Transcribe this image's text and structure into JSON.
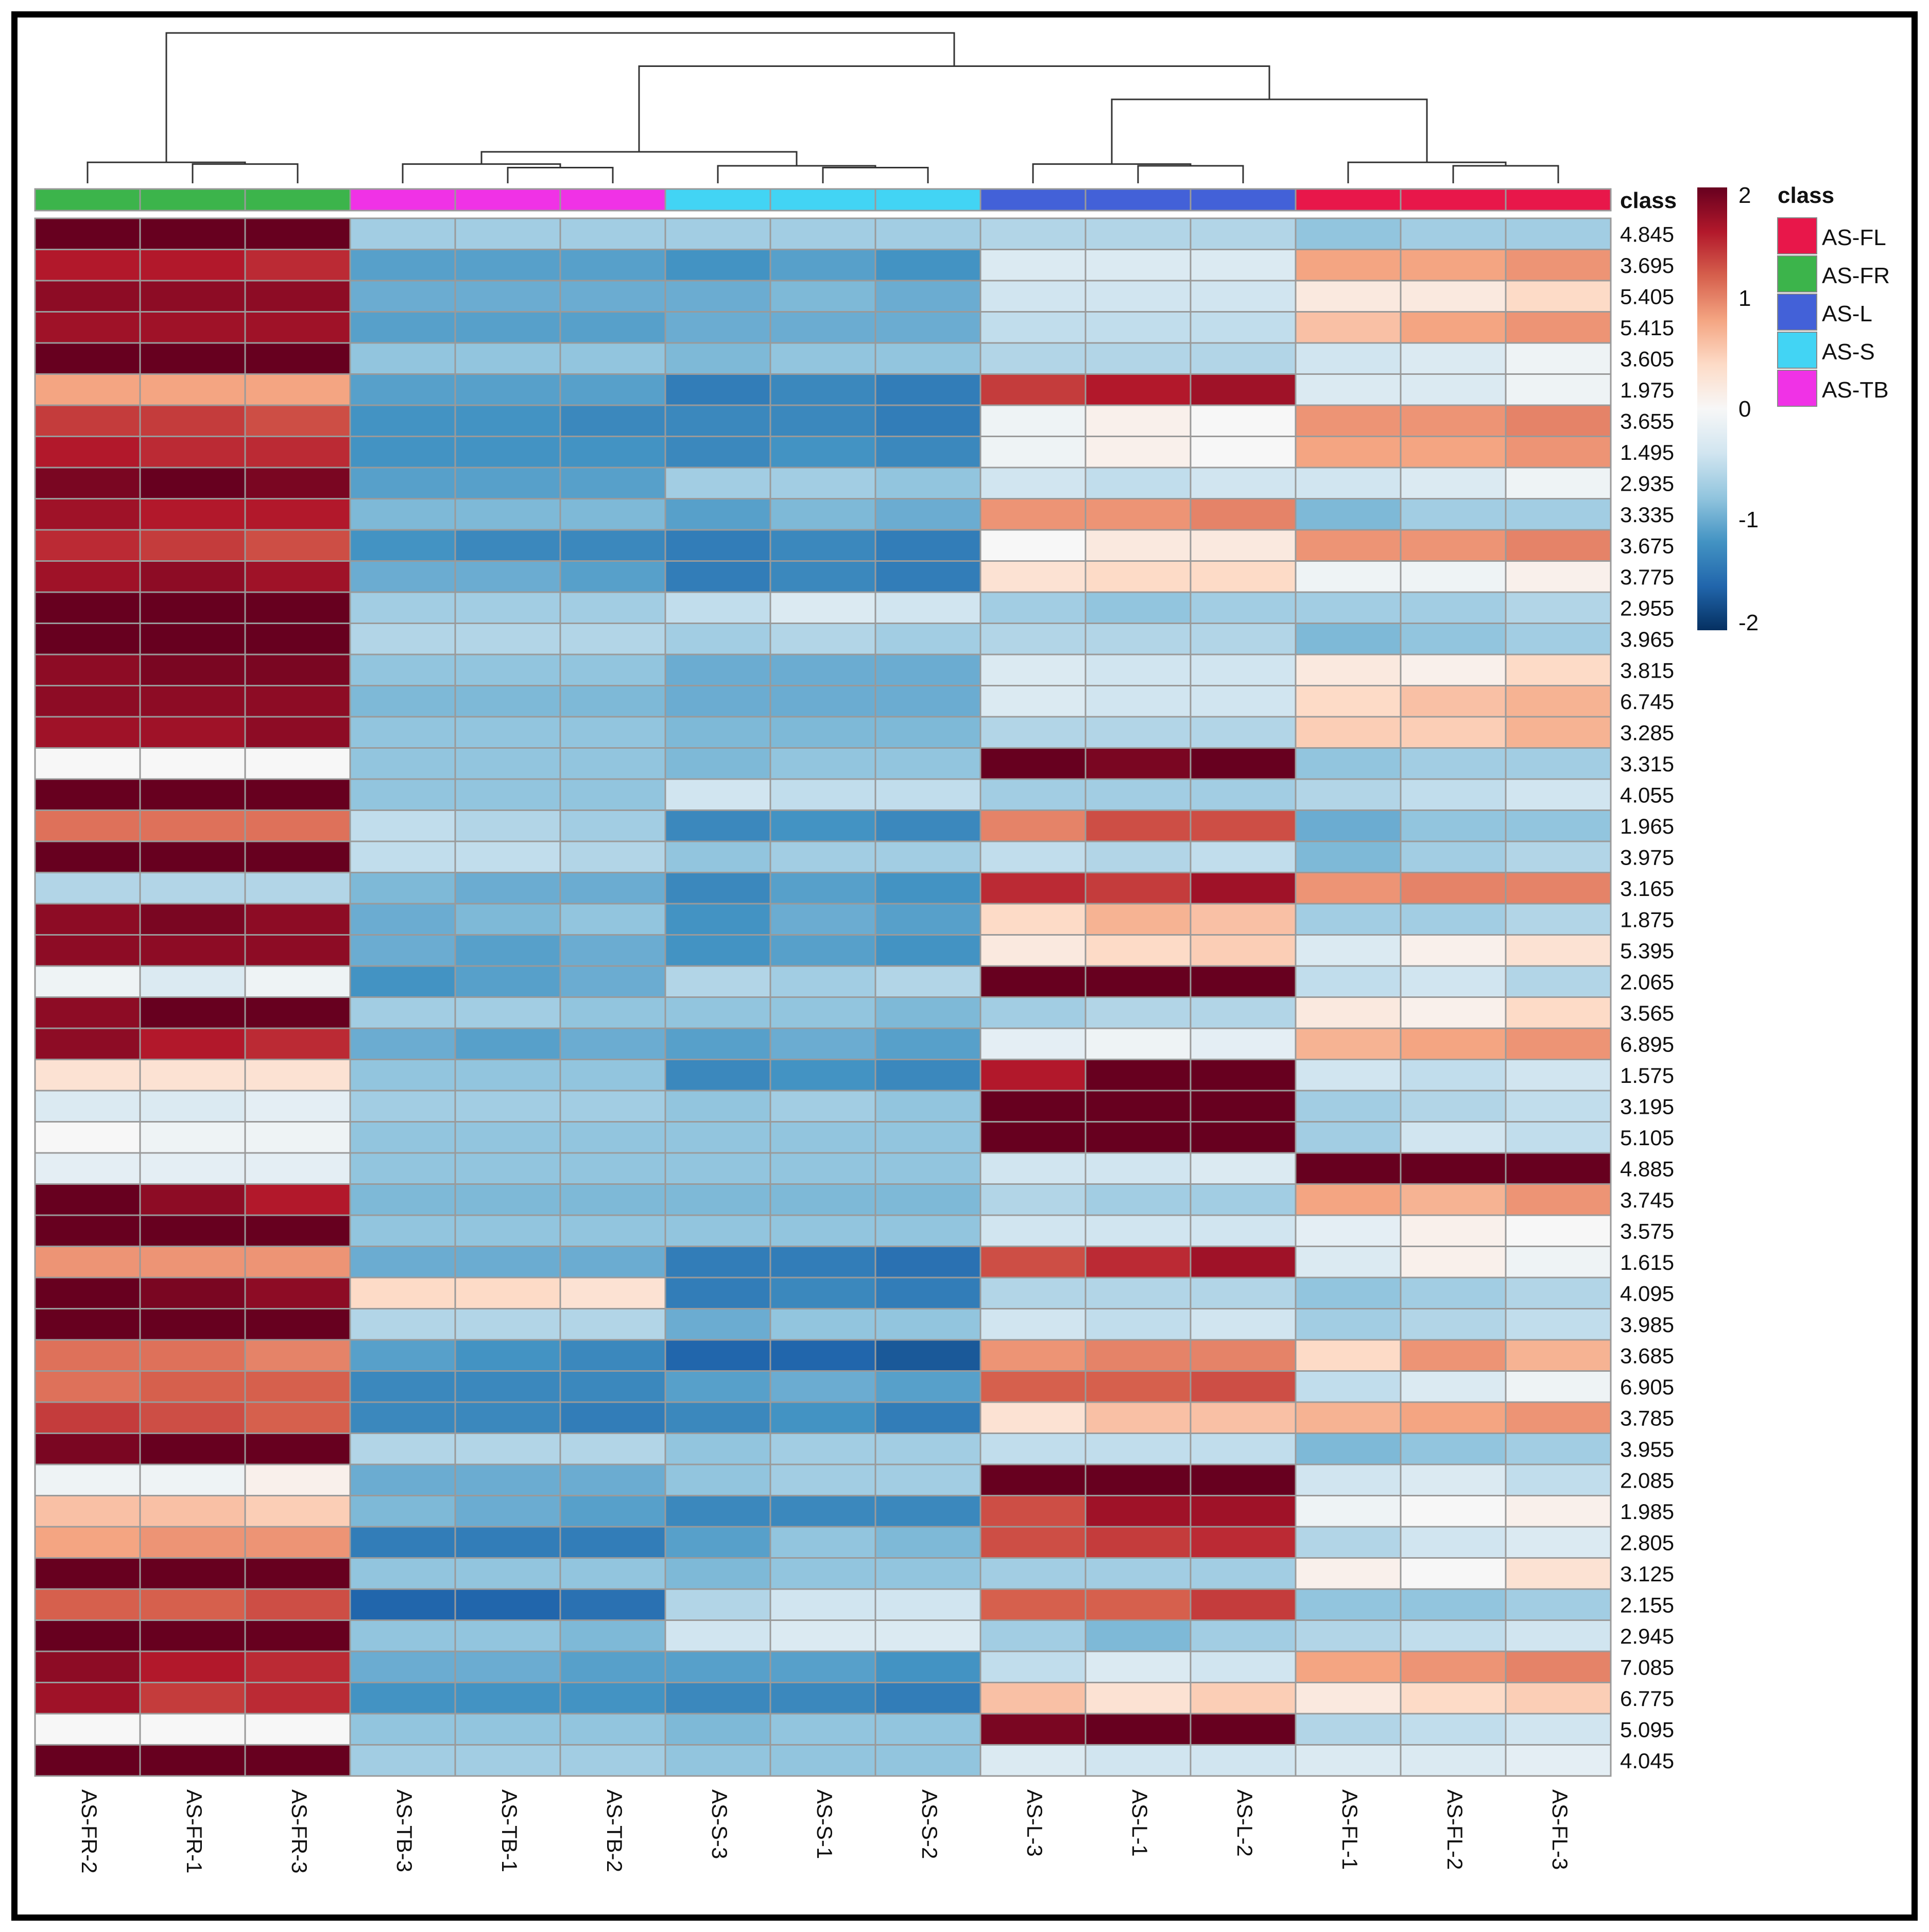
{
  "chart_data": {
    "type": "heatmap",
    "title": "",
    "columns": [
      "AS-FR-2",
      "AS-FR-1",
      "AS-FR-3",
      "AS-TB-3",
      "AS-TB-1",
      "AS-TB-2",
      "AS-S-3",
      "AS-S-1",
      "AS-S-2",
      "AS-L-3",
      "AS-L-1",
      "AS-L-2",
      "AS-FL-1",
      "AS-FL-2",
      "AS-FL-3"
    ],
    "column_classes": [
      "AS-FR",
      "AS-FR",
      "AS-FR",
      "AS-TB",
      "AS-TB",
      "AS-TB",
      "AS-S",
      "AS-S",
      "AS-S",
      "AS-L",
      "AS-L",
      "AS-L",
      "AS-FL",
      "AS-FL",
      "AS-FL"
    ],
    "rows": [
      "4.845",
      "3.695",
      "5.405",
      "5.415",
      "3.605",
      "1.975",
      "3.655",
      "1.495",
      "2.935",
      "3.335",
      "3.675",
      "3.775",
      "2.955",
      "3.965",
      "3.815",
      "6.745",
      "3.285",
      "3.315",
      "4.055",
      "1.965",
      "3.975",
      "3.165",
      "1.875",
      "5.395",
      "2.065",
      "3.565",
      "6.895",
      "1.575",
      "3.195",
      "5.105",
      "4.885",
      "3.745",
      "3.575",
      "1.615",
      "4.095",
      "3.985",
      "3.685",
      "6.905",
      "3.785",
      "3.955",
      "2.085",
      "1.985",
      "2.805",
      "3.125",
      "2.155",
      "2.945",
      "7.085",
      "6.775",
      "5.095",
      "4.045"
    ],
    "values": [
      [
        2.2,
        2.2,
        2.1,
        -0.7,
        -0.7,
        -0.7,
        -0.7,
        -0.7,
        -0.7,
        -0.6,
        -0.6,
        -0.6,
        -0.8,
        -0.7,
        -0.7
      ],
      [
        1.6,
        1.6,
        1.5,
        -1.1,
        -1.1,
        -1.1,
        -1.2,
        -1.1,
        -1.2,
        -0.3,
        -0.3,
        -0.3,
        0.8,
        0.8,
        0.9
      ],
      [
        1.8,
        1.8,
        1.8,
        -1.0,
        -1.0,
        -1.0,
        -1.0,
        -0.9,
        -1.0,
        -0.4,
        -0.4,
        -0.4,
        0.2,
        0.2,
        0.4
      ],
      [
        1.7,
        1.7,
        1.7,
        -1.1,
        -1.1,
        -1.1,
        -1.0,
        -1.0,
        -1.0,
        -0.5,
        -0.5,
        -0.5,
        0.6,
        0.8,
        0.9
      ],
      [
        2.3,
        2.2,
        2.1,
        -0.8,
        -0.8,
        -0.8,
        -0.9,
        -0.8,
        -0.8,
        -0.6,
        -0.6,
        -0.6,
        -0.4,
        -0.3,
        -0.1
      ],
      [
        0.8,
        0.8,
        0.8,
        -1.1,
        -1.1,
        -1.1,
        -1.4,
        -1.3,
        -1.4,
        1.4,
        1.6,
        1.7,
        -0.3,
        -0.3,
        -0.1
      ],
      [
        1.4,
        1.4,
        1.3,
        -1.2,
        -1.2,
        -1.3,
        -1.3,
        -1.3,
        -1.4,
        -0.1,
        0.1,
        0.0,
        0.9,
        0.9,
        1.0
      ],
      [
        1.6,
        1.5,
        1.5,
        -1.2,
        -1.2,
        -1.2,
        -1.3,
        -1.2,
        -1.3,
        -0.1,
        0.1,
        0.0,
        0.8,
        0.8,
        0.9
      ],
      [
        1.9,
        2.0,
        1.9,
        -1.1,
        -1.1,
        -1.1,
        -0.7,
        -0.7,
        -0.8,
        -0.4,
        -0.5,
        -0.4,
        -0.4,
        -0.3,
        -0.1
      ],
      [
        1.7,
        1.6,
        1.6,
        -0.9,
        -0.9,
        -0.9,
        -1.1,
        -0.9,
        -1.0,
        0.9,
        0.9,
        1.0,
        -0.9,
        -0.7,
        -0.7
      ],
      [
        1.5,
        1.4,
        1.3,
        -1.2,
        -1.3,
        -1.3,
        -1.4,
        -1.3,
        -1.4,
        0.0,
        0.2,
        0.2,
        0.9,
        0.9,
        1.0
      ],
      [
        1.7,
        1.8,
        1.7,
        -1.0,
        -1.0,
        -1.1,
        -1.4,
        -1.3,
        -1.4,
        0.3,
        0.4,
        0.4,
        -0.1,
        -0.1,
        0.1
      ],
      [
        2.0,
        2.2,
        2.2,
        -0.7,
        -0.7,
        -0.7,
        -0.5,
        -0.3,
        -0.4,
        -0.7,
        -0.8,
        -0.7,
        -0.7,
        -0.7,
        -0.6
      ],
      [
        2.3,
        2.1,
        2.0,
        -0.6,
        -0.6,
        -0.6,
        -0.7,
        -0.6,
        -0.7,
        -0.6,
        -0.6,
        -0.6,
        -0.9,
        -0.8,
        -0.7
      ],
      [
        1.8,
        1.9,
        1.9,
        -0.8,
        -0.8,
        -0.8,
        -1.0,
        -1.0,
        -1.0,
        -0.3,
        -0.4,
        -0.4,
        0.2,
        0.1,
        0.4
      ],
      [
        1.8,
        1.8,
        1.8,
        -0.9,
        -0.9,
        -0.9,
        -1.0,
        -1.0,
        -1.0,
        -0.3,
        -0.4,
        -0.4,
        0.4,
        0.6,
        0.7
      ],
      [
        1.7,
        1.7,
        1.8,
        -0.8,
        -0.8,
        -0.8,
        -0.9,
        -0.9,
        -0.9,
        -0.6,
        -0.6,
        -0.6,
        0.5,
        0.5,
        0.7
      ],
      [
        0.0,
        0.0,
        0.0,
        -0.8,
        -0.8,
        -0.8,
        -0.9,
        -0.8,
        -0.8,
        2.1,
        1.9,
        2.3,
        -0.8,
        -0.7,
        -0.7
      ],
      [
        2.0,
        2.2,
        2.2,
        -0.8,
        -0.8,
        -0.8,
        -0.4,
        -0.5,
        -0.5,
        -0.7,
        -0.7,
        -0.7,
        -0.6,
        -0.5,
        -0.4
      ],
      [
        1.1,
        1.1,
        1.1,
        -0.5,
        -0.6,
        -0.7,
        -1.3,
        -1.2,
        -1.3,
        1.0,
        1.3,
        1.3,
        -1.0,
        -0.8,
        -0.8
      ],
      [
        2.2,
        2.1,
        2.2,
        -0.5,
        -0.5,
        -0.6,
        -0.8,
        -0.7,
        -0.7,
        -0.5,
        -0.6,
        -0.5,
        -0.9,
        -0.7,
        -0.6
      ],
      [
        -0.6,
        -0.6,
        -0.6,
        -0.9,
        -1.0,
        -1.0,
        -1.3,
        -1.1,
        -1.2,
        1.5,
        1.4,
        1.7,
        0.9,
        1.0,
        1.0
      ],
      [
        1.8,
        1.9,
        1.8,
        -1.0,
        -0.9,
        -0.8,
        -1.2,
        -1.0,
        -1.1,
        0.4,
        0.7,
        0.6,
        -0.7,
        -0.7,
        -0.6
      ],
      [
        1.8,
        1.8,
        1.8,
        -1.0,
        -1.1,
        -1.0,
        -1.2,
        -1.1,
        -1.2,
        0.2,
        0.4,
        0.5,
        -0.3,
        0.1,
        0.3
      ],
      [
        -0.1,
        -0.3,
        -0.1,
        -1.2,
        -1.1,
        -1.0,
        -0.6,
        -0.7,
        -0.6,
        2.1,
        2.2,
        2.3,
        -0.5,
        -0.4,
        -0.6
      ],
      [
        1.8,
        2.1,
        2.0,
        -0.7,
        -0.7,
        -0.8,
        -0.8,
        -0.8,
        -0.9,
        -0.7,
        -0.6,
        -0.6,
        0.2,
        0.1,
        0.4
      ],
      [
        1.8,
        1.6,
        1.5,
        -1.0,
        -1.1,
        -1.0,
        -1.1,
        -1.0,
        -1.1,
        -0.2,
        -0.1,
        -0.2,
        0.7,
        0.8,
        0.9
      ],
      [
        0.3,
        0.3,
        0.3,
        -0.8,
        -0.8,
        -0.8,
        -1.3,
        -1.2,
        -1.3,
        1.6,
        2.1,
        2.1,
        -0.4,
        -0.5,
        -0.4
      ],
      [
        -0.3,
        -0.3,
        -0.2,
        -0.7,
        -0.7,
        -0.7,
        -0.8,
        -0.7,
        -0.8,
        2.1,
        2.3,
        2.3,
        -0.7,
        -0.6,
        -0.5
      ],
      [
        0.0,
        -0.1,
        -0.1,
        -0.8,
        -0.8,
        -0.8,
        -0.8,
        -0.8,
        -0.8,
        2.1,
        2.2,
        2.3,
        -0.7,
        -0.4,
        -0.5
      ],
      [
        -0.2,
        -0.2,
        -0.2,
        -0.8,
        -0.8,
        -0.8,
        -0.8,
        -0.8,
        -0.8,
        -0.4,
        -0.4,
        -0.3,
        2.0,
        2.4,
        2.2
      ],
      [
        2.1,
        1.8,
        1.6,
        -0.9,
        -0.9,
        -0.9,
        -0.9,
        -0.9,
        -0.9,
        -0.6,
        -0.7,
        -0.7,
        0.8,
        0.7,
        0.9
      ],
      [
        2.2,
        2.2,
        2.1,
        -0.8,
        -0.8,
        -0.8,
        -0.8,
        -0.8,
        -0.8,
        -0.4,
        -0.4,
        -0.4,
        -0.2,
        0.1,
        0.0
      ],
      [
        0.9,
        0.9,
        0.9,
        -1.0,
        -1.0,
        -1.0,
        -1.4,
        -1.4,
        -1.5,
        1.3,
        1.5,
        1.7,
        -0.3,
        0.1,
        -0.1
      ],
      [
        2.1,
        1.9,
        1.8,
        0.4,
        0.4,
        0.3,
        -1.4,
        -1.3,
        -1.4,
        -0.6,
        -0.6,
        -0.6,
        -0.8,
        -0.7,
        -0.6
      ],
      [
        2.2,
        2.2,
        2.3,
        -0.6,
        -0.6,
        -0.6,
        -1.0,
        -0.8,
        -0.8,
        -0.4,
        -0.5,
        -0.4,
        -0.7,
        -0.6,
        -0.5
      ],
      [
        1.1,
        1.1,
        1.0,
        -1.1,
        -1.2,
        -1.3,
        -1.6,
        -1.6,
        -1.7,
        0.9,
        1.0,
        1.0,
        0.4,
        0.9,
        0.7
      ],
      [
        1.1,
        1.2,
        1.2,
        -1.3,
        -1.3,
        -1.3,
        -1.1,
        -1.0,
        -1.1,
        1.2,
        1.2,
        1.3,
        -0.5,
        -0.3,
        -0.1
      ],
      [
        1.4,
        1.3,
        1.2,
        -1.3,
        -1.3,
        -1.4,
        -1.3,
        -1.2,
        -1.4,
        0.3,
        0.6,
        0.6,
        0.7,
        0.8,
        0.9
      ],
      [
        1.9,
        2.2,
        2.3,
        -0.6,
        -0.6,
        -0.6,
        -0.8,
        -0.7,
        -0.7,
        -0.5,
        -0.5,
        -0.5,
        -0.9,
        -0.8,
        -0.7
      ],
      [
        -0.1,
        -0.1,
        0.1,
        -1.0,
        -1.0,
        -1.0,
        -0.8,
        -0.7,
        -0.7,
        2.0,
        2.1,
        2.2,
        -0.4,
        -0.3,
        -0.5
      ],
      [
        0.6,
        0.6,
        0.5,
        -0.9,
        -1.0,
        -1.1,
        -1.3,
        -1.3,
        -1.3,
        1.3,
        1.7,
        1.7,
        -0.1,
        0.0,
        0.1
      ],
      [
        0.8,
        0.9,
        0.9,
        -1.4,
        -1.4,
        -1.4,
        -1.1,
        -0.8,
        -0.9,
        1.3,
        1.4,
        1.5,
        -0.6,
        -0.4,
        -0.3
      ],
      [
        2.4,
        2.1,
        2.0,
        -0.8,
        -0.8,
        -0.8,
        -0.9,
        -0.8,
        -0.8,
        -0.7,
        -0.7,
        -0.7,
        0.1,
        0.0,
        0.3
      ],
      [
        1.2,
        1.2,
        1.3,
        -1.6,
        -1.6,
        -1.5,
        -0.6,
        -0.4,
        -0.4,
        1.2,
        1.2,
        1.4,
        -0.8,
        -0.8,
        -0.7
      ],
      [
        2.3,
        2.0,
        2.0,
        -0.8,
        -0.8,
        -0.9,
        -0.4,
        -0.3,
        -0.3,
        -0.7,
        -0.9,
        -0.7,
        -0.6,
        -0.5,
        -0.4
      ],
      [
        1.8,
        1.6,
        1.5,
        -1.0,
        -1.0,
        -1.1,
        -1.1,
        -1.1,
        -1.2,
        -0.5,
        -0.3,
        -0.4,
        0.8,
        0.9,
        1.0
      ],
      [
        1.7,
        1.4,
        1.5,
        -1.2,
        -1.2,
        -1.2,
        -1.3,
        -1.3,
        -1.4,
        0.6,
        0.3,
        0.5,
        0.2,
        0.4,
        0.5
      ],
      [
        0.0,
        0.0,
        0.0,
        -0.8,
        -0.8,
        -0.8,
        -0.9,
        -0.8,
        -0.8,
        1.9,
        2.2,
        2.3,
        -0.6,
        -0.5,
        -0.4
      ],
      [
        2.2,
        2.2,
        2.2,
        -0.7,
        -0.7,
        -0.7,
        -0.8,
        -0.8,
        -0.8,
        -0.3,
        -0.4,
        -0.4,
        -0.3,
        -0.3,
        -0.2
      ]
    ],
    "class_label": "class",
    "color_scale": {
      "min": -2,
      "max": 2,
      "ticks": [
        "2",
        "1",
        "0",
        "-1",
        "-2"
      ],
      "stops": [
        "#053061",
        "#2166ac",
        "#4393c3",
        "#92c5de",
        "#d1e5f0",
        "#f7f7f7",
        "#fddbc7",
        "#f4a582",
        "#d6604d",
        "#b2182b",
        "#67001f"
      ]
    },
    "legend": [
      {
        "label": "AS-FL",
        "color": "#e8174a"
      },
      {
        "label": "AS-FR",
        "color": "#3cb44b"
      },
      {
        "label": "AS-L",
        "color": "#4361d8"
      },
      {
        "label": "AS-S",
        "color": "#42d4f4"
      },
      {
        "label": "AS-TB",
        "color": "#f032e6"
      }
    ],
    "dendrogram": {
      "heights": {
        "fr_pair": 0.55,
        "fr_all": 0.6,
        "tb_pair": 0.45,
        "tb_all": 0.55,
        "s_pair": 0.45,
        "s_all": 0.5,
        "tb_s": 0.9,
        "l_pair": 0.5,
        "l_all": 0.55,
        "fl_pair": 0.5,
        "fl_all": 0.6,
        "l_fl": 2.4,
        "tb_s_l_fl": 3.35,
        "root": 4.3
      }
    }
  }
}
